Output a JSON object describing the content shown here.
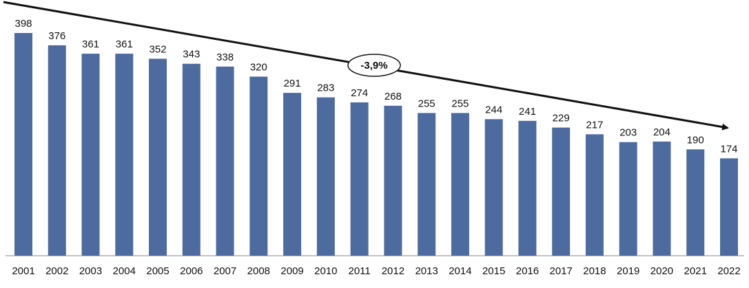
{
  "chart_data": {
    "type": "bar",
    "categories": [
      "2001",
      "2002",
      "2003",
      "2004",
      "2005",
      "2006",
      "2007",
      "2008",
      "2009",
      "2010",
      "2011",
      "2012",
      "2013",
      "2014",
      "2015",
      "2016",
      "2017",
      "2018",
      "2019",
      "2020",
      "2021",
      "2022"
    ],
    "values": [
      398,
      376,
      361,
      361,
      352,
      343,
      338,
      320,
      291,
      283,
      274,
      268,
      255,
      255,
      244,
      241,
      229,
      217,
      203,
      204,
      190,
      174
    ],
    "color": "#4d6b9e",
    "annotation": "-3,9%"
  }
}
